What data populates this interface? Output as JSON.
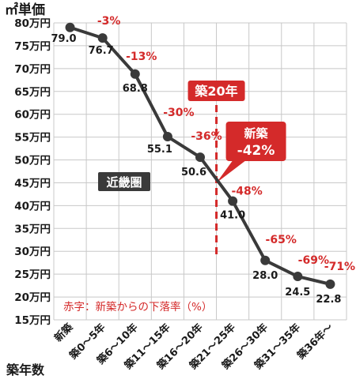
{
  "chart_data": {
    "type": "line",
    "y_unit_label": "㎡単価",
    "xlabel": "築年数",
    "ylim": [
      15,
      80
    ],
    "y_tick_values": [
      80,
      75,
      70,
      65,
      60,
      55,
      50,
      45,
      40,
      35,
      30,
      25,
      20,
      15
    ],
    "y_tick_labels": [
      "80万円",
      "75万円",
      "70万円",
      "65万円",
      "60万円",
      "55万円",
      "50万円",
      "45万円",
      "40万円",
      "35万円",
      "30万円",
      "25万円",
      "20万円",
      "15万円"
    ],
    "categories": [
      "新築",
      "築0～5年",
      "築6～10年",
      "築11～15年",
      "築16～20年",
      "築21～25年",
      "築26～30年",
      "築31～35年",
      "築36年～"
    ],
    "values": [
      79.0,
      76.7,
      68.8,
      55.1,
      50.6,
      41.0,
      28.0,
      24.5,
      22.8
    ],
    "value_labels": [
      "79.0",
      "76.7",
      "68.8",
      "55.1",
      "50.6",
      "41.0",
      "28.0",
      "24.5",
      "22.8"
    ],
    "pct_labels": [
      "",
      "-3%",
      "-13%",
      "-30%",
      "-36%",
      "-48%",
      "-65%",
      "-69%",
      "-71%"
    ],
    "marker_20": {
      "label": "築20年",
      "at_years": 20,
      "callout_line1": "新築",
      "callout_line2": "-42%",
      "value": 45
    },
    "region_label": "近畿圏",
    "note": "赤字：新築からの下落率（%）",
    "grid": true,
    "colors": {
      "line": "#3a3a3a",
      "marker": "#d42a2a",
      "pct_text": "#d42a2a",
      "region_bg": "#3a3a3a",
      "grid": "#c8c8c8"
    }
  }
}
